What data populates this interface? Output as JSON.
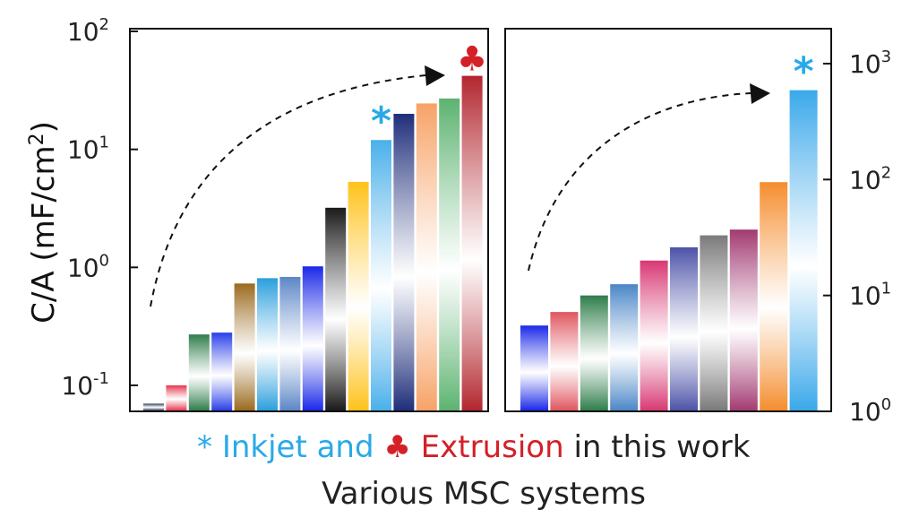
{
  "chart_data": [
    {
      "type": "bar",
      "panel": "left",
      "yscale": "log",
      "ylim": [
        0.06,
        100
      ],
      "ylabel": "C/A (mF/cm",
      "ylabel_sup": "2",
      "ylabel_close": ")",
      "yticks": [
        {
          "base": "10",
          "exp": "-1",
          "value": 0.1
        },
        {
          "base": "10",
          "exp": "0",
          "value": 1
        },
        {
          "base": "10",
          "exp": "1",
          "value": 10
        },
        {
          "base": "10",
          "exp": "2",
          "value": 100
        }
      ],
      "values": [
        0.07,
        0.1,
        0.27,
        0.28,
        0.73,
        0.81,
        0.83,
        1.02,
        3.2,
        5.3,
        12,
        20,
        24.5,
        27,
        42
      ],
      "colors": [
        "#2b3a55",
        "#e8364f",
        "#2e7d4a",
        "#2a3fe8",
        "#9a6a1e",
        "#2a9fdc",
        "#5b86c6",
        "#1a28e8",
        "#1a1a1a",
        "#ffc21a",
        "#4ab0ea",
        "#1f2e7a",
        "#f7a266",
        "#5cb370",
        "#b2262e"
      ],
      "markers": [
        {
          "bar_index": 10,
          "symbol": "*",
          "color": "#29a9e8"
        },
        {
          "bar_index": 14,
          "symbol": "♣",
          "color": "#d42027"
        }
      ]
    },
    {
      "type": "bar",
      "panel": "right",
      "yscale": "log",
      "ylim": [
        1,
        2000
      ],
      "yticks": [
        {
          "base": "10",
          "exp": "0",
          "value": 1
        },
        {
          "base": "10",
          "exp": "1",
          "value": 10
        },
        {
          "base": "10",
          "exp": "2",
          "value": 100
        },
        {
          "base": "10",
          "exp": "3",
          "value": 1000
        }
      ],
      "values": [
        5.5,
        7.2,
        10,
        12.5,
        20,
        26,
        33,
        37,
        95,
        590
      ],
      "colors": [
        "#1a28e8",
        "#e0555e",
        "#2e7d4a",
        "#4a86c6",
        "#d83873",
        "#4d53a8",
        "#7a7a7a",
        "#a23a72",
        "#f58d2e",
        "#3aa8ea"
      ],
      "markers": [
        {
          "bar_index": 9,
          "symbol": "*",
          "color": "#29a9e8"
        }
      ]
    }
  ],
  "caption": {
    "star": "*",
    "inkjet": "Inkjet and",
    "club": "♣",
    "extrusion": "Extrusion",
    "rest": "in this work",
    "xlabel": "Various MSC systems",
    "inkjet_color": "#29a9e8",
    "extrusion_color": "#d42027"
  }
}
